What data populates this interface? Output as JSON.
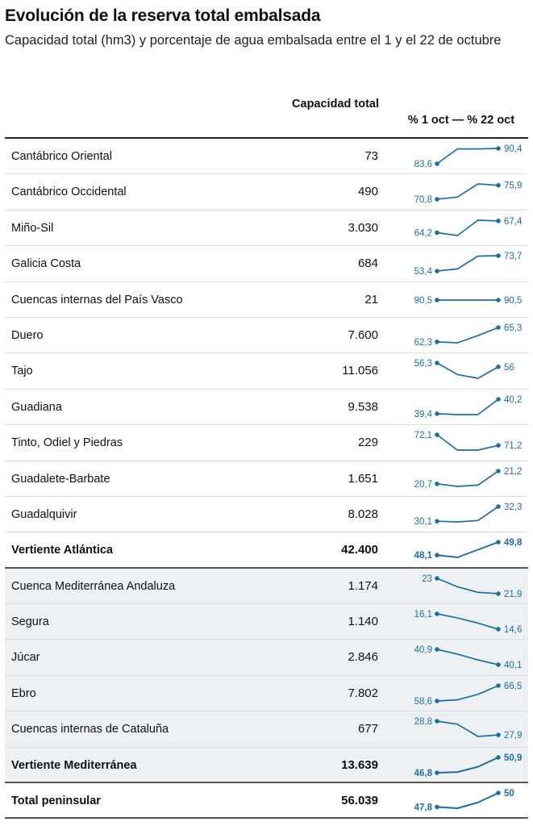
{
  "title": "Evolución de la reserva total embalsada",
  "subtitle": "Capacidad total (hm3) y porcentaje de agua embalsada entre el 1 y el 22 de octubre",
  "headers": {
    "capacity": "Capacidad total",
    "range": "% 1 oct — % 22 oct"
  },
  "chart_data": {
    "type": "table",
    "columns": [
      "",
      "Capacidad total",
      "% 1 oct — % 22 oct"
    ],
    "line_color": "#1e6f9f",
    "rows": [
      {
        "name": "Cantábrico Oriental",
        "capacity": "73",
        "start_label": "83,6",
        "end_label": "90,4",
        "values": [
          83.6,
          90.2,
          90.2,
          90.4
        ],
        "group": "atlantic",
        "total": false
      },
      {
        "name": "Cantábrico Occidental",
        "capacity": "490",
        "start_label": "70,8",
        "end_label": "75,9",
        "values": [
          70.8,
          71.6,
          76.4,
          75.9
        ],
        "group": "atlantic",
        "total": false
      },
      {
        "name": "Miño-Sil",
        "capacity": "3.030",
        "start_label": "64,2",
        "end_label": "67,4",
        "values": [
          64.2,
          63.4,
          67.6,
          67.4
        ],
        "group": "atlantic",
        "total": false
      },
      {
        "name": "Galicia Costa",
        "capacity": "684",
        "start_label": "53,4",
        "end_label": "73,7",
        "values": [
          53.4,
          56.2,
          73.2,
          73.7
        ],
        "group": "atlantic",
        "total": false
      },
      {
        "name": "Cuencas internas del País Vasco",
        "capacity": "21",
        "start_label": "90,5",
        "end_label": "90,5",
        "values": [
          90.5,
          90.5,
          90.5,
          90.5
        ],
        "group": "atlantic",
        "total": false
      },
      {
        "name": "Duero",
        "capacity": "7.600",
        "start_label": "62,3",
        "end_label": "65,3",
        "values": [
          62.3,
          62.1,
          63.6,
          65.3
        ],
        "group": "atlantic",
        "total": false
      },
      {
        "name": "Tajo",
        "capacity": "11.056",
        "start_label": "56,3",
        "end_label": "56",
        "values": [
          56.3,
          55.4,
          55.1,
          56.0
        ],
        "group": "atlantic",
        "total": false
      },
      {
        "name": "Guadiana",
        "capacity": "9.538",
        "start_label": "39,4",
        "end_label": "40,2",
        "values": [
          39.4,
          39.35,
          39.35,
          40.2
        ],
        "group": "atlantic",
        "total": false
      },
      {
        "name": "Tinto, Odiel y Piedras",
        "capacity": "229",
        "start_label": "72,1",
        "end_label": "71,2",
        "values": [
          72.1,
          70.8,
          70.8,
          71.2
        ],
        "group": "atlantic",
        "total": false
      },
      {
        "name": "Guadalete-Barbate",
        "capacity": "1.651",
        "start_label": "20,7",
        "end_label": "21,2",
        "values": [
          20.7,
          20.6,
          20.65,
          21.2
        ],
        "group": "atlantic",
        "total": false
      },
      {
        "name": "Guadalquivir",
        "capacity": "8.028",
        "start_label": "30,1",
        "end_label": "32,3",
        "values": [
          30.1,
          30.0,
          30.2,
          32.3
        ],
        "group": "atlantic",
        "total": false
      },
      {
        "name": "Vertiente Atlántica",
        "capacity": "42.400",
        "start_label": "48,1",
        "end_label": "49,8",
        "values": [
          48.1,
          47.8,
          48.8,
          49.8
        ],
        "group": "atlantic",
        "total": true
      },
      {
        "name": "Cuenca Mediterránea Andaluza",
        "capacity": "1.174",
        "start_label": "23",
        "end_label": "21,9",
        "values": [
          23.0,
          22.4,
          22.0,
          21.9
        ],
        "group": "mediterranean",
        "total": false
      },
      {
        "name": "Segura",
        "capacity": "1.140",
        "start_label": "16,1",
        "end_label": "14,6",
        "values": [
          16.1,
          15.7,
          15.2,
          14.6
        ],
        "group": "mediterranean",
        "total": false
      },
      {
        "name": "Júcar",
        "capacity": "2.846",
        "start_label": "40,9",
        "end_label": "40,1",
        "values": [
          40.9,
          40.65,
          40.35,
          40.1
        ],
        "group": "mediterranean",
        "total": false
      },
      {
        "name": "Ebro",
        "capacity": "7.802",
        "start_label": "58,6",
        "end_label": "66,5",
        "values": [
          58.6,
          59.2,
          62.0,
          66.5
        ],
        "group": "mediterranean",
        "total": false
      },
      {
        "name": "Cuencas internas de Cataluña",
        "capacity": "677",
        "start_label": "28,8",
        "end_label": "27,9",
        "values": [
          28.8,
          28.6,
          27.8,
          27.9
        ],
        "group": "mediterranean",
        "total": false
      },
      {
        "name": "Vertiente Mediterránea",
        "capacity": "13.639",
        "start_label": "46,8",
        "end_label": "50,9",
        "values": [
          46.8,
          47.0,
          48.4,
          50.9
        ],
        "group": "mediterranean",
        "total": true
      },
      {
        "name": "Total peninsular",
        "capacity": "56.039",
        "start_label": "47,8",
        "end_label": "50",
        "values": [
          47.8,
          47.6,
          48.5,
          50.0
        ],
        "group": "all",
        "total": true
      }
    ]
  }
}
